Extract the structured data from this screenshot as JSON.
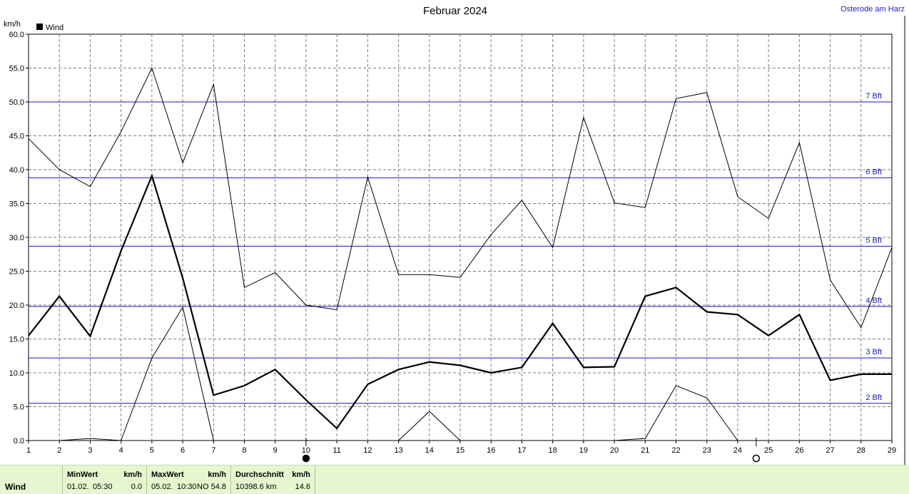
{
  "chart_data": {
    "type": "line",
    "title": "Februar 2024",
    "location": "Osterode am Harz",
    "ylabel": "km/h",
    "ylim": [
      0,
      60
    ],
    "yticks": [
      "0.0",
      "5.0",
      "10.0",
      "15.0",
      "20.0",
      "25.0",
      "30.0",
      "35.0",
      "40.0",
      "45.0",
      "50.0",
      "55.0",
      "60.0"
    ],
    "categories": [
      "1",
      "2",
      "3",
      "4",
      "5",
      "6",
      "7",
      "8",
      "9",
      "10",
      "11",
      "12",
      "13",
      "14",
      "15",
      "16",
      "17",
      "18",
      "19",
      "20",
      "21",
      "22",
      "23",
      "24",
      "25",
      "26",
      "27",
      "28",
      "29"
    ],
    "grid": true,
    "legend_position": "top-left",
    "series": [
      {
        "name": "Wind",
        "role": "mean",
        "color": "#000000",
        "values": [
          15.5,
          21.3,
          15.4,
          28.0,
          39.1,
          24.0,
          6.7,
          8.1,
          10.5,
          6.0,
          1.8,
          8.3,
          10.5,
          11.6,
          11.1,
          10.0,
          10.8,
          17.3,
          10.8,
          10.9,
          21.3,
          22.6,
          19.0,
          18.6,
          15.5,
          18.6,
          8.9,
          9.8,
          9.8
        ]
      },
      {
        "role": "max",
        "color": "#000000",
        "values": [
          44.6,
          40.0,
          37.5,
          45.6,
          55.0,
          41.0,
          52.6,
          22.6,
          24.8,
          20.0,
          19.3,
          38.9,
          24.5,
          24.5,
          24.1,
          30.4,
          35.5,
          28.5,
          47.7,
          35.1,
          34.4,
          50.5,
          51.4,
          36.0,
          32.8,
          44.0,
          23.7,
          16.7,
          28.5
        ]
      },
      {
        "role": "min",
        "color": "#000000",
        "values": [
          null,
          0.0,
          0.3,
          0.0,
          12.2,
          19.7,
          0.0,
          null,
          null,
          null,
          null,
          null,
          0.0,
          4.3,
          0.0,
          null,
          null,
          null,
          null,
          0.0,
          0.3,
          8.1,
          6.3,
          0.0,
          null,
          null,
          null,
          null,
          null
        ]
      }
    ],
    "reference_lines": [
      {
        "value": 5.5,
        "label": "2 Bft"
      },
      {
        "value": 12.2,
        "label": "3 Bft"
      },
      {
        "value": 19.8,
        "label": "4 Bft"
      },
      {
        "value": 28.7,
        "label": "5 Bft"
      },
      {
        "value": 38.8,
        "label": "6 Bft"
      },
      {
        "value": 50.0,
        "label": "7 Bft"
      }
    ],
    "reference_color": "#1818b8",
    "moon_markers": [
      {
        "x": 10,
        "phase": "new"
      },
      {
        "x": 24.6,
        "phase": "full"
      }
    ]
  },
  "footer": {
    "series_label": "Wind",
    "min_header": "MinWert",
    "min_unit": "km/h",
    "min_date": "01.02.",
    "min_time": "05:30",
    "min_value": "0.0",
    "max_header": "MaxWert",
    "max_unit": "km/h",
    "max_date": "05.02.",
    "max_time": "10:30",
    "max_dir": "NO",
    "max_value": "54.8",
    "avg_header": "Durchschnitt",
    "avg_unit": "km/h",
    "avg_distance": "10398.6 km",
    "avg_value": "14.6"
  }
}
